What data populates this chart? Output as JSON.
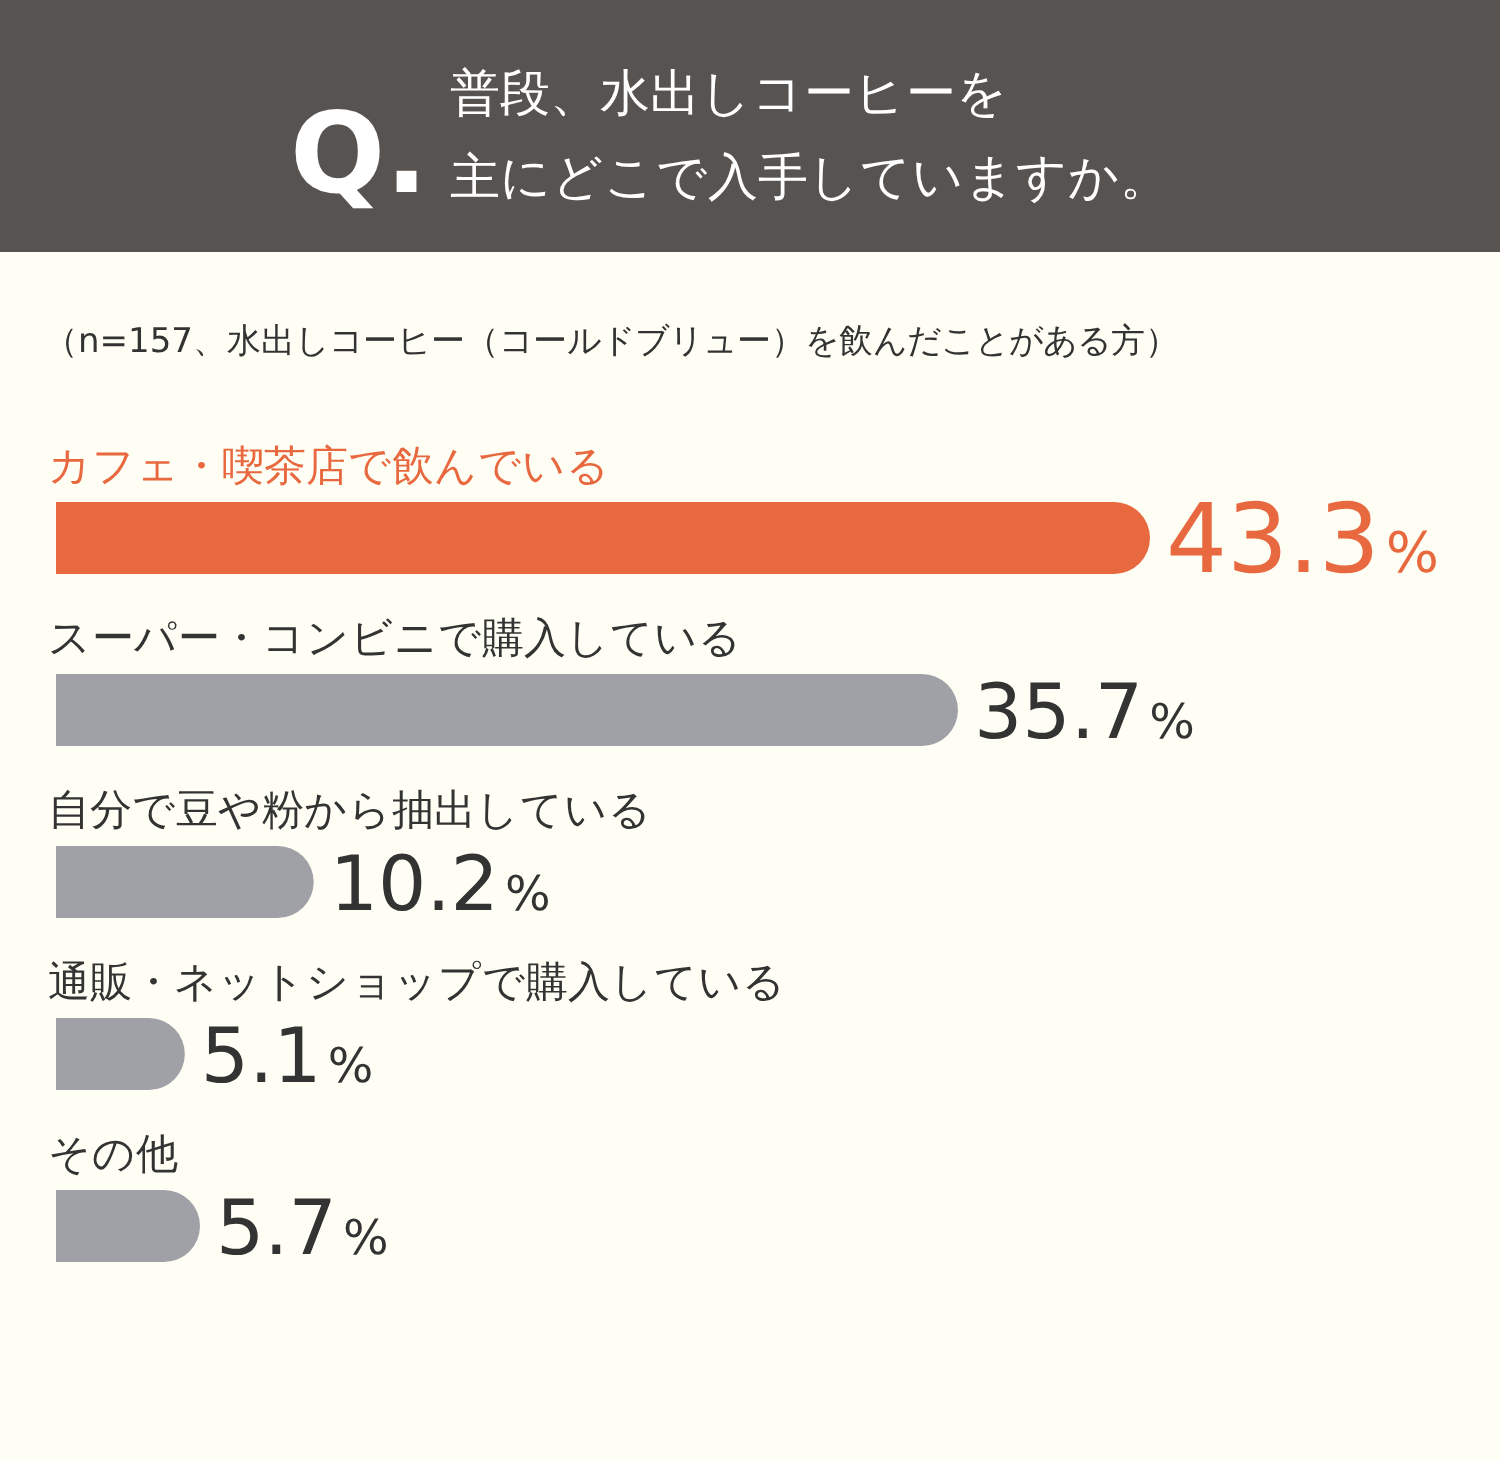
{
  "chart_data": {
    "type": "bar",
    "orientation": "horizontal",
    "title": "Q. 普段、水出しコーヒーを主にどこで入手していますか。",
    "subtitle": "（n=157、水出しコーヒー（コールドブリュー）を飲んだことがある方）",
    "categories": [
      "カフェ・喫茶店で飲んでいる",
      "スーパー・コンビニで購入している",
      "自分で豆や粉から抽出している",
      "通販・ネットショップで購入している",
      "その他"
    ],
    "values": [
      43.3,
      35.7,
      10.2,
      5.1,
      5.7
    ],
    "colors": [
      "#e8693f",
      "#a0a1a6",
      "#a0a1a6",
      "#a0a1a6",
      "#a0a1a6"
    ],
    "value_labels": [
      "43.3%",
      "35.7%",
      "10.2%",
      "5.1%",
      "5.7%"
    ]
  }
}
